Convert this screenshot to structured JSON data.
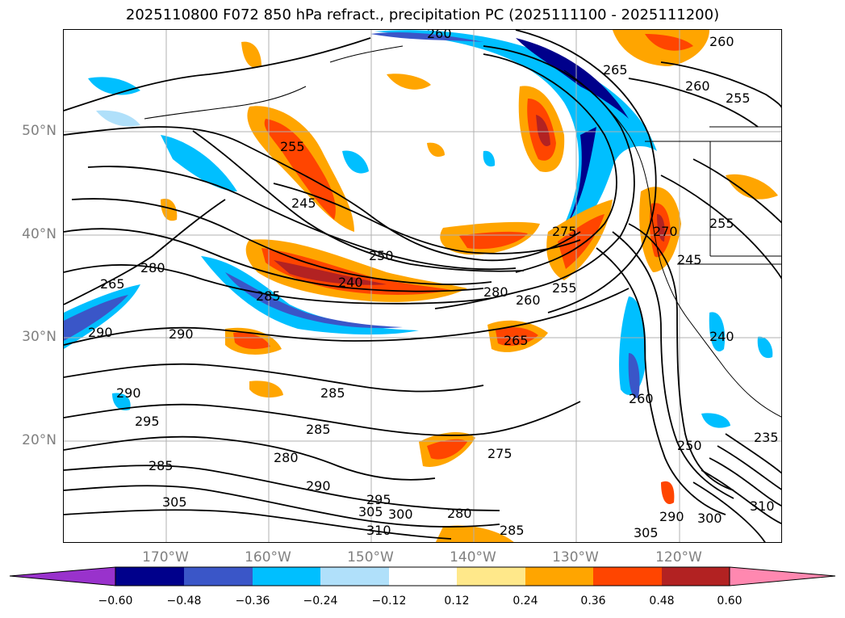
{
  "title": "2025110800 F072 850 hPa refract., precipitation PC (2025111100 - 2025111200)",
  "latitude_labels": [
    "50°N",
    "40°N",
    "30°N",
    "20°N"
  ],
  "longitude_labels": [
    "170°W",
    "160°W",
    "150°W",
    "140°W",
    "130°W",
    "120°W"
  ],
  "contour_labels": [
    "260",
    "265",
    "260",
    "255",
    "260",
    "255",
    "245",
    "250",
    "240",
    "275",
    "255",
    "260",
    "280",
    "265",
    "270",
    "255",
    "245",
    "240",
    "265",
    "280",
    "285",
    "290",
    "290",
    "290",
    "295",
    "285",
    "280",
    "285",
    "275",
    "285",
    "290",
    "295",
    "305",
    "300",
    "280",
    "285",
    "310",
    "305",
    "290",
    "300",
    "305",
    "310",
    "260",
    "250",
    "235"
  ],
  "colorbar": {
    "ticks": [
      "−0.60",
      "−0.48",
      "−0.36",
      "−0.24",
      "−0.12",
      "0.12",
      "0.24",
      "0.36",
      "0.48",
      "0.60"
    ],
    "colors": [
      "#9932cc",
      "#00008b",
      "#3a56c8",
      "#00bfff",
      "#b0e0fa",
      "#ffffff",
      "#ffe88a",
      "#ffa500",
      "#ff4500",
      "#b22222",
      "#ff88b0"
    ]
  }
}
